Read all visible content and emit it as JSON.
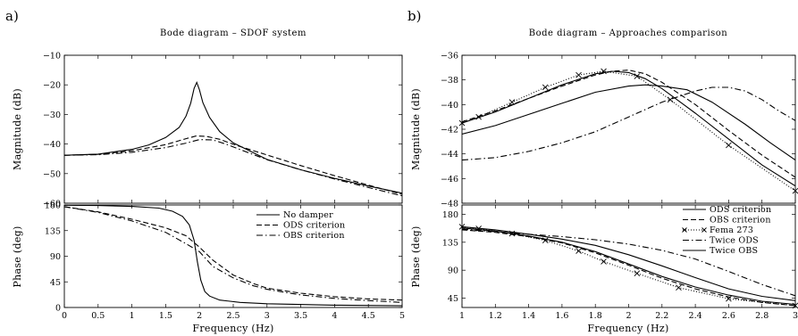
{
  "figure": {
    "panel_labels": [
      "a)",
      "b)"
    ]
  },
  "chart_data": [
    {
      "id": "a-mag",
      "type": "line",
      "title": "Bode diagram – SDOF system",
      "xlabel": "",
      "ylabel": "Magnitude (dB)",
      "xlim": [
        0,
        5
      ],
      "ylim": [
        -60,
        -10
      ],
      "xticks": [],
      "xtick_labels": [],
      "yticks": [
        -60,
        -50,
        -40,
        -30,
        -20,
        -10
      ],
      "ytick_labels": [
        "−60",
        "−50",
        "−40",
        "−30",
        "−20",
        "−10"
      ],
      "grid": false,
      "series": [
        {
          "name": "No damper",
          "style": "solid",
          "x": [
            0,
            0.5,
            1.0,
            1.25,
            1.5,
            1.7,
            1.8,
            1.87,
            1.92,
            1.96,
            2.0,
            2.05,
            2.15,
            2.3,
            2.5,
            3.0,
            3.5,
            4.0,
            4.5,
            5.0
          ],
          "y": [
            -43.8,
            -43.4,
            -41.8,
            -40.3,
            -37.8,
            -34.4,
            -30.6,
            -26.2,
            -21.2,
            -19.2,
            -21.7,
            -26.0,
            -31.0,
            -35.8,
            -39.6,
            -45.2,
            -48.7,
            -51.6,
            -54.2,
            -56.6
          ]
        },
        {
          "name": "ODS criterion",
          "style": "dashed",
          "x": [
            0,
            0.5,
            1.0,
            1.5,
            1.8,
            1.95,
            2.1,
            2.3,
            2.5,
            3.0,
            3.5,
            4.0,
            4.5,
            5.0
          ],
          "y": [
            -43.8,
            -43.5,
            -42.3,
            -40.2,
            -38.2,
            -37.3,
            -37.4,
            -38.4,
            -40.1,
            -43.7,
            -47.3,
            -50.7,
            -53.9,
            -57.0
          ]
        },
        {
          "name": "OBS criterion",
          "style": "dashdot",
          "x": [
            0,
            0.5,
            1.0,
            1.5,
            1.8,
            2.0,
            2.2,
            2.4,
            2.7,
            3.0,
            3.5,
            4.0,
            4.5,
            5.0
          ],
          "y": [
            -43.8,
            -43.6,
            -42.8,
            -41.2,
            -39.7,
            -38.5,
            -38.6,
            -40.1,
            -42.7,
            -45.3,
            -48.7,
            -51.8,
            -54.7,
            -57.5
          ]
        }
      ]
    },
    {
      "id": "a-phase",
      "type": "line",
      "title": "",
      "xlabel": "Frequency (Hz)",
      "ylabel": "Phase (deg)",
      "xlim": [
        0,
        5
      ],
      "ylim": [
        0,
        180
      ],
      "xticks": [
        0,
        0.5,
        1,
        1.5,
        2,
        2.5,
        3,
        3.5,
        4,
        4.5,
        5
      ],
      "xtick_labels": [
        "0",
        "0.5",
        "1",
        "1.5",
        "2",
        "2.5",
        "3",
        "3.5",
        "4",
        "4.5",
        "5"
      ],
      "yticks": [
        0,
        45,
        90,
        135,
        180
      ],
      "ytick_labels": [
        "0",
        "45",
        "90",
        "135",
        "180"
      ],
      "grid": false,
      "legend_position": "top-right",
      "series": [
        {
          "name": "No damper",
          "style": "solid",
          "x": [
            0,
            0.5,
            1.0,
            1.4,
            1.6,
            1.75,
            1.85,
            1.92,
            1.97,
            2.02,
            2.08,
            2.15,
            2.3,
            2.6,
            3.0,
            4.0,
            5.0
          ],
          "y": [
            179.5,
            179,
            177.5,
            174.5,
            169,
            160,
            145,
            118,
            80,
            48,
            28,
            20,
            13,
            9,
            6.5,
            4,
            3
          ]
        },
        {
          "name": "ODS criterion",
          "style": "dashed",
          "x": [
            0,
            0.5,
            1.0,
            1.5,
            1.8,
            2.0,
            2.2,
            2.5,
            2.8,
            3.0,
            3.5,
            4.0,
            4.5,
            5.0
          ],
          "y": [
            177,
            168,
            155,
            140,
            126,
            106,
            83,
            57,
            42,
            34,
            25,
            19,
            15,
            13
          ]
        },
        {
          "name": "OBS criterion",
          "style": "dashdot",
          "x": [
            0,
            0.5,
            1.0,
            1.5,
            1.8,
            2.0,
            2.2,
            2.5,
            2.8,
            3.0,
            3.5,
            4.0,
            4.5,
            5.0
          ],
          "y": [
            177,
            167,
            152,
            132,
            112,
            98,
            72,
            52,
            38,
            32,
            22,
            16,
            12,
            9
          ]
        }
      ]
    },
    {
      "id": "b-mag",
      "type": "line",
      "title": "Bode diagram – Approaches comparison",
      "xlabel": "",
      "ylabel": "Magnitude (dB)",
      "xlim": [
        1,
        3
      ],
      "ylim": [
        -48,
        -36
      ],
      "xticks": [],
      "xtick_labels": [],
      "yticks": [
        -48,
        -46,
        -44,
        -42,
        -40,
        -38,
        -36
      ],
      "ytick_labels": [
        "−48",
        "−46",
        "−44",
        "−42",
        "−40",
        "−38",
        "−36"
      ],
      "grid": false,
      "series": [
        {
          "name": "ODS criterion",
          "style": "solid",
          "x": [
            1.0,
            1.2,
            1.4,
            1.6,
            1.8,
            1.9,
            2.0,
            2.1,
            2.2,
            2.4,
            2.6,
            2.8,
            3.0
          ],
          "y": [
            -41.5,
            -40.6,
            -39.5,
            -38.4,
            -37.5,
            -37.3,
            -37.4,
            -37.9,
            -38.7,
            -40.7,
            -42.8,
            -44.9,
            -46.6
          ]
        },
        {
          "name": "OBS criterion",
          "style": "dashed",
          "x": [
            1.0,
            1.2,
            1.4,
            1.6,
            1.8,
            1.9,
            2.0,
            2.1,
            2.2,
            2.4,
            2.6,
            2.8,
            3.0
          ],
          "y": [
            -41.4,
            -40.5,
            -39.5,
            -38.5,
            -37.6,
            -37.3,
            -37.2,
            -37.5,
            -38.2,
            -40.0,
            -42.1,
            -44.1,
            -45.9
          ]
        },
        {
          "name": "Fema 273",
          "style": "dotted-x",
          "x": [
            1.0,
            1.1,
            1.3,
            1.5,
            1.7,
            1.85,
            2.05,
            2.25,
            2.6,
            3.0
          ],
          "y": [
            -41.5,
            -41.0,
            -39.8,
            -38.6,
            -37.6,
            -37.3,
            -37.7,
            -39.6,
            -43.3,
            -47.0
          ]
        },
        {
          "name": "Twice ODS",
          "style": "dashdot",
          "x": [
            1.0,
            1.2,
            1.4,
            1.6,
            1.8,
            2.0,
            2.2,
            2.4,
            2.5,
            2.6,
            2.7,
            2.8,
            2.9,
            3.0
          ],
          "y": [
            -44.5,
            -44.3,
            -43.8,
            -43.1,
            -42.2,
            -41.0,
            -39.8,
            -38.9,
            -38.6,
            -38.6,
            -38.9,
            -39.6,
            -40.5,
            -41.3
          ]
        },
        {
          "name": "Twice OBS",
          "style": "solid",
          "x": [
            1.0,
            1.2,
            1.4,
            1.6,
            1.8,
            2.0,
            2.1,
            2.2,
            2.35,
            2.5,
            2.7,
            2.85,
            3.0
          ],
          "y": [
            -42.4,
            -41.7,
            -40.8,
            -39.9,
            -39.0,
            -38.5,
            -38.4,
            -38.5,
            -38.8,
            -39.8,
            -41.6,
            -43.1,
            -44.5
          ]
        }
      ]
    },
    {
      "id": "b-phase",
      "type": "line",
      "title": "",
      "xlabel": "Frequency (Hz)",
      "ylabel": "Phase (deg)",
      "xlim": [
        1,
        3
      ],
      "ylim": [
        30,
        195
      ],
      "xticks": [
        1,
        1.2,
        1.4,
        1.6,
        1.8,
        2,
        2.2,
        2.4,
        2.6,
        2.8,
        3
      ],
      "xtick_labels": [
        "1",
        "1.2",
        "1.4",
        "1.6",
        "1.8",
        "2",
        "2.2",
        "2.4",
        "2.6",
        "2.8",
        "3"
      ],
      "yticks": [
        45,
        90,
        135,
        180
      ],
      "ytick_labels": [
        "45",
        "90",
        "135",
        "180"
      ],
      "grid": false,
      "legend_position": "top-right",
      "series": [
        {
          "name": "ODS criterion",
          "style": "solid",
          "x": [
            1.0,
            1.2,
            1.4,
            1.6,
            1.8,
            2.0,
            2.2,
            2.4,
            2.6,
            2.8,
            3.0
          ],
          "y": [
            158,
            153,
            145,
            135,
            120,
            100,
            80,
            63,
            50,
            40,
            35
          ]
        },
        {
          "name": "OBS criterion",
          "style": "dashed",
          "x": [
            1.0,
            1.2,
            1.4,
            1.6,
            1.8,
            2.0,
            2.2,
            2.4,
            2.6,
            2.8,
            3.0
          ],
          "y": [
            155,
            151,
            144,
            134,
            118,
            98,
            77,
            60,
            47,
            38,
            33
          ]
        },
        {
          "name": "Fema 273",
          "style": "dotted-x",
          "x": [
            1.0,
            1.1,
            1.3,
            1.5,
            1.7,
            1.85,
            2.05,
            2.3,
            2.6,
            3.0
          ],
          "y": [
            160,
            157,
            149,
            138,
            121,
            104,
            85,
            62,
            44,
            33
          ]
        },
        {
          "name": "Twice ODS",
          "style": "dashdot",
          "x": [
            1.0,
            1.2,
            1.4,
            1.6,
            1.8,
            2.0,
            2.2,
            2.4,
            2.6,
            2.8,
            3.0
          ],
          "y": [
            156,
            152,
            148,
            144,
            139,
            132,
            122,
            108,
            88,
            67,
            49
          ]
        },
        {
          "name": "Twice OBS",
          "style": "solid",
          "x": [
            1.0,
            1.2,
            1.4,
            1.6,
            1.8,
            2.0,
            2.2,
            2.4,
            2.6,
            2.8,
            3.0
          ],
          "y": [
            160,
            155,
            148,
            140,
            130,
            115,
            97,
            78,
            60,
            48,
            41
          ]
        }
      ]
    }
  ]
}
